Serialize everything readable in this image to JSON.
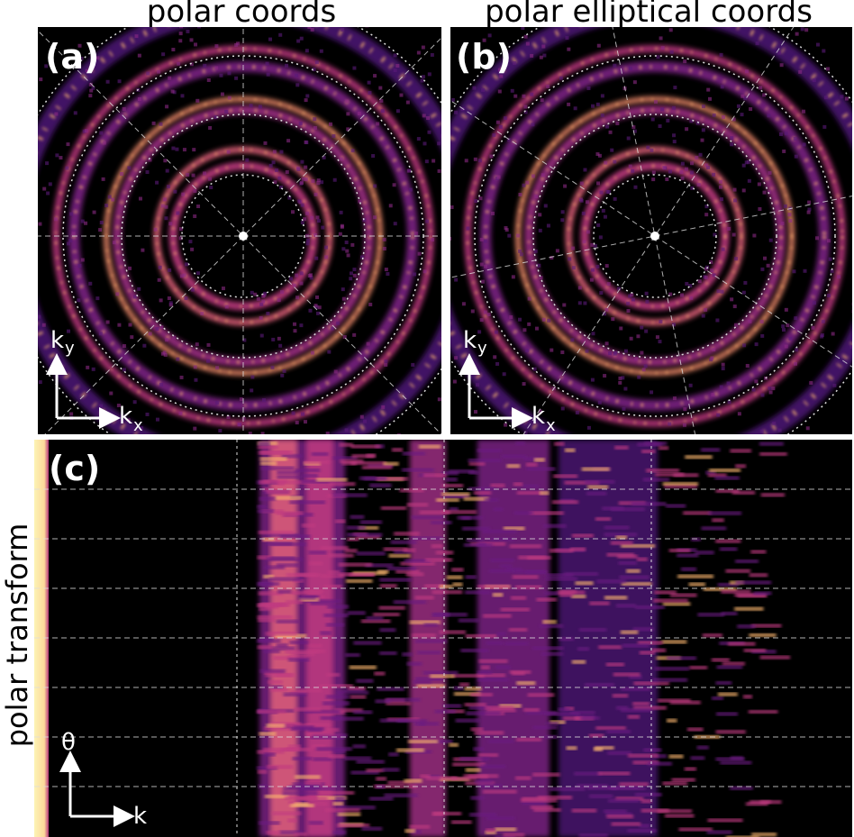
{
  "panels": [
    {
      "title": "polar coords",
      "label": "(a)",
      "axis_y": "k",
      "axis_y_sub": "y",
      "axis_x": "k",
      "axis_x_sub": "x"
    },
    {
      "title": "polar elliptical coords",
      "label": "(b)",
      "axis_y": "k",
      "axis_y_sub": "y",
      "axis_x": "k",
      "axis_x_sub": "x"
    }
  ],
  "panel_c": {
    "label": "(c)",
    "side_label": "polar transform",
    "axis_y": "θ",
    "axis_x": "k"
  }
}
